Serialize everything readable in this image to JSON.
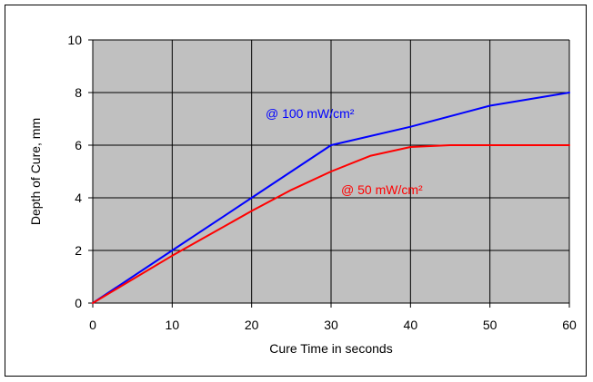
{
  "chart_data": {
    "type": "line",
    "title": "",
    "xlabel": "Cure Time in seconds",
    "ylabel": "Depth of Cure, mm",
    "xlim": [
      0,
      60
    ],
    "ylim": [
      0,
      10
    ],
    "xticks": [
      0,
      10,
      20,
      30,
      40,
      50,
      60
    ],
    "yticks": [
      0,
      2,
      4,
      6,
      8,
      10
    ],
    "grid": true,
    "plot_background": "#c0c0c0",
    "series": [
      {
        "name": "@ 100 mW/cm²",
        "color": "#0000ff",
        "points": [
          [
            0,
            0
          ],
          [
            10,
            2
          ],
          [
            20,
            4
          ],
          [
            30,
            6
          ],
          [
            40,
            6.7
          ],
          [
            50,
            7.5
          ],
          [
            60,
            8
          ]
        ]
      },
      {
        "name": "@ 50 mW/cm²",
        "color": "#ff0000",
        "points": [
          [
            0,
            0
          ],
          [
            10,
            1.8
          ],
          [
            20,
            3.5
          ],
          [
            25,
            4.3
          ],
          [
            30,
            5
          ],
          [
            35,
            5.6
          ],
          [
            40,
            5.93
          ],
          [
            45,
            6
          ],
          [
            50,
            6
          ],
          [
            55,
            6
          ],
          [
            60,
            6
          ]
        ]
      }
    ]
  }
}
